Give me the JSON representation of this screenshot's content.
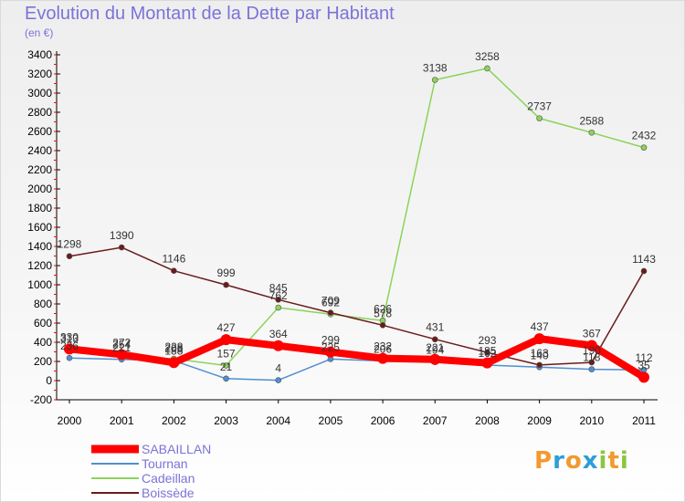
{
  "title": "Evolution du Montant de la Dette par Habitant",
  "subtitle": "(en €)",
  "logo": {
    "letters": [
      "P",
      "r",
      "o",
      "x",
      "i",
      "t",
      "i"
    ],
    "colors": [
      "#f29a2e",
      "#2d9fd8",
      "#f29a2e",
      "#2d9fd8",
      "#8cc63f",
      "#f29a2e",
      "#8cc63f"
    ]
  },
  "chart_data": {
    "type": "line",
    "title": "Evolution du Montant de la Dette par Habitant",
    "ylabel": "(en €)",
    "xlabel": "",
    "x": [
      "2000",
      "2001",
      "2002",
      "2003",
      "2004",
      "2005",
      "2006",
      "2007",
      "2008",
      "2009",
      "2010",
      "2011"
    ],
    "ylim": [
      -200,
      3400
    ],
    "yticks": [
      -200,
      0,
      200,
      400,
      600,
      800,
      1000,
      1200,
      1400,
      1600,
      1800,
      2000,
      2200,
      2400,
      2600,
      2800,
      3000,
      3200,
      3400
    ],
    "grid": false,
    "legend_position": "bottom-left",
    "series": [
      {
        "name": "SABAILLAN",
        "color": "#ff0000",
        "values": [
          330,
          272,
          188,
          427,
          364,
          299,
          232,
          221,
          185,
          437,
          367,
          35
        ]
      },
      {
        "name": "Tournan",
        "color": "#4f8fd0",
        "values": [
          236,
          221,
          208,
          21,
          4,
          225,
          206,
          194,
          162,
          140,
          118,
          112
        ]
      },
      {
        "name": "Cadeillan",
        "color": "#8cd35a",
        "values": [
          313,
          254,
          228,
          157,
          762,
          692,
          626,
          3138,
          3258,
          2737,
          2588,
          2432
        ]
      },
      {
        "name": "Boissède",
        "color": "#6b1a1a",
        "values": [
          1298,
          1390,
          1146,
          999,
          845,
          709,
          578,
          431,
          293,
          163,
          190,
          1143
        ]
      }
    ]
  }
}
